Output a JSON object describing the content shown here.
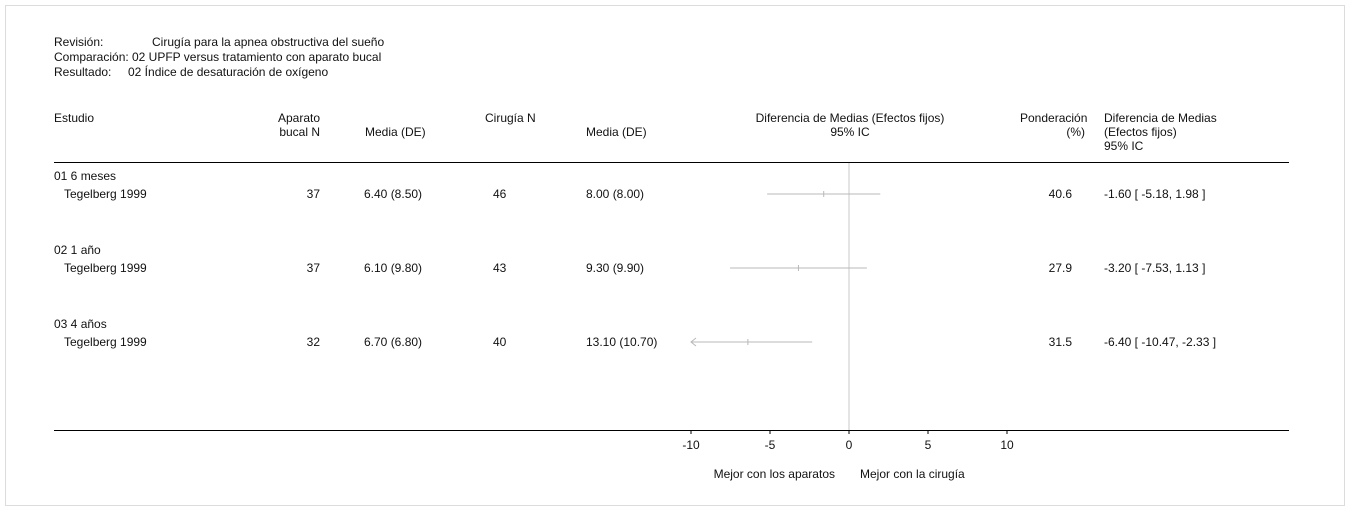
{
  "header": {
    "review_label": "Revisión:",
    "review_value": "Cirugía para la apnea obstructiva del sueño",
    "comparison_label": "Comparación:",
    "comparison_value": "02 UPFP versus tratamiento con aparato bucal",
    "outcome_label": "Resultado:",
    "outcome_value": "02 Índice de desaturación de oxígeno"
  },
  "columns": {
    "study": "Estudio",
    "device_n_line1": "Aparato",
    "device_n_line2": "bucal N",
    "device_mean": "Media (DE)",
    "surgery_n": "Cirugía N",
    "surgery_mean": "Media (DE)",
    "plot_line1": "Diferencia de Medias  (Efectos fijos)",
    "plot_line2": "95% IC",
    "weight_line1": "Ponderación",
    "weight_line2": "(%)",
    "md_line1": "Diferencia de Medias",
    "md_line2": "(Efectos fijos)",
    "md_line3": "95% IC"
  },
  "groups": [
    {
      "label": "01 6 meses",
      "study": "Tegelberg 1999",
      "device_n": "37",
      "device_mean": "6.40  (8.50)",
      "surgery_n": "46",
      "surgery_mean": "8.00  (8.00)",
      "weight": "40.6",
      "md_text": "-1.60 [ -5.18, 1.98 ]"
    },
    {
      "label": "02 1 año",
      "study": "Tegelberg 1999",
      "device_n": "37",
      "device_mean": "6.10  (9.80)",
      "surgery_n": "43",
      "surgery_mean": "9.30  (9.90)",
      "weight": "27.9",
      "md_text": "-3.20 [ -7.53, 1.13 ]"
    },
    {
      "label": "03 4 años",
      "study": "Tegelberg 1999",
      "device_n": "32",
      "device_mean": "6.70  (6.80)",
      "surgery_n": "40",
      "surgery_mean": "13.10  (10.70)",
      "weight": "31.5",
      "md_text": "-6.40 [ -10.47, -2.33 ]"
    }
  ],
  "footer": {
    "favours_left": "Mejor con los aparatos",
    "favours_right": "Mejor con la cirugía"
  },
  "chart_data": {
    "type": "forest",
    "xlim": [
      -10,
      10
    ],
    "xticks": [
      "-10",
      "-5",
      "0",
      "5",
      "10"
    ],
    "xtick_values": [
      -10,
      -5,
      0,
      5,
      10
    ],
    "null_line": 0,
    "points": [
      {
        "group": "01 6 meses",
        "study": "Tegelberg 1999",
        "md": -1.6,
        "ci_low": -5.18,
        "ci_high": 1.98,
        "weight": 40.6
      },
      {
        "group": "02 1 año",
        "study": "Tegelberg 1999",
        "md": -3.2,
        "ci_low": -7.53,
        "ci_high": 1.13,
        "weight": 27.9
      },
      {
        "group": "03 4 años",
        "study": "Tegelberg 1999",
        "md": -6.4,
        "ci_low": -10.47,
        "ci_high": -2.33,
        "weight": 31.5
      }
    ],
    "colors": {
      "ci_line": "#b8b8b8",
      "axis": "#000000",
      "null_line": "#c8c8c8"
    }
  }
}
